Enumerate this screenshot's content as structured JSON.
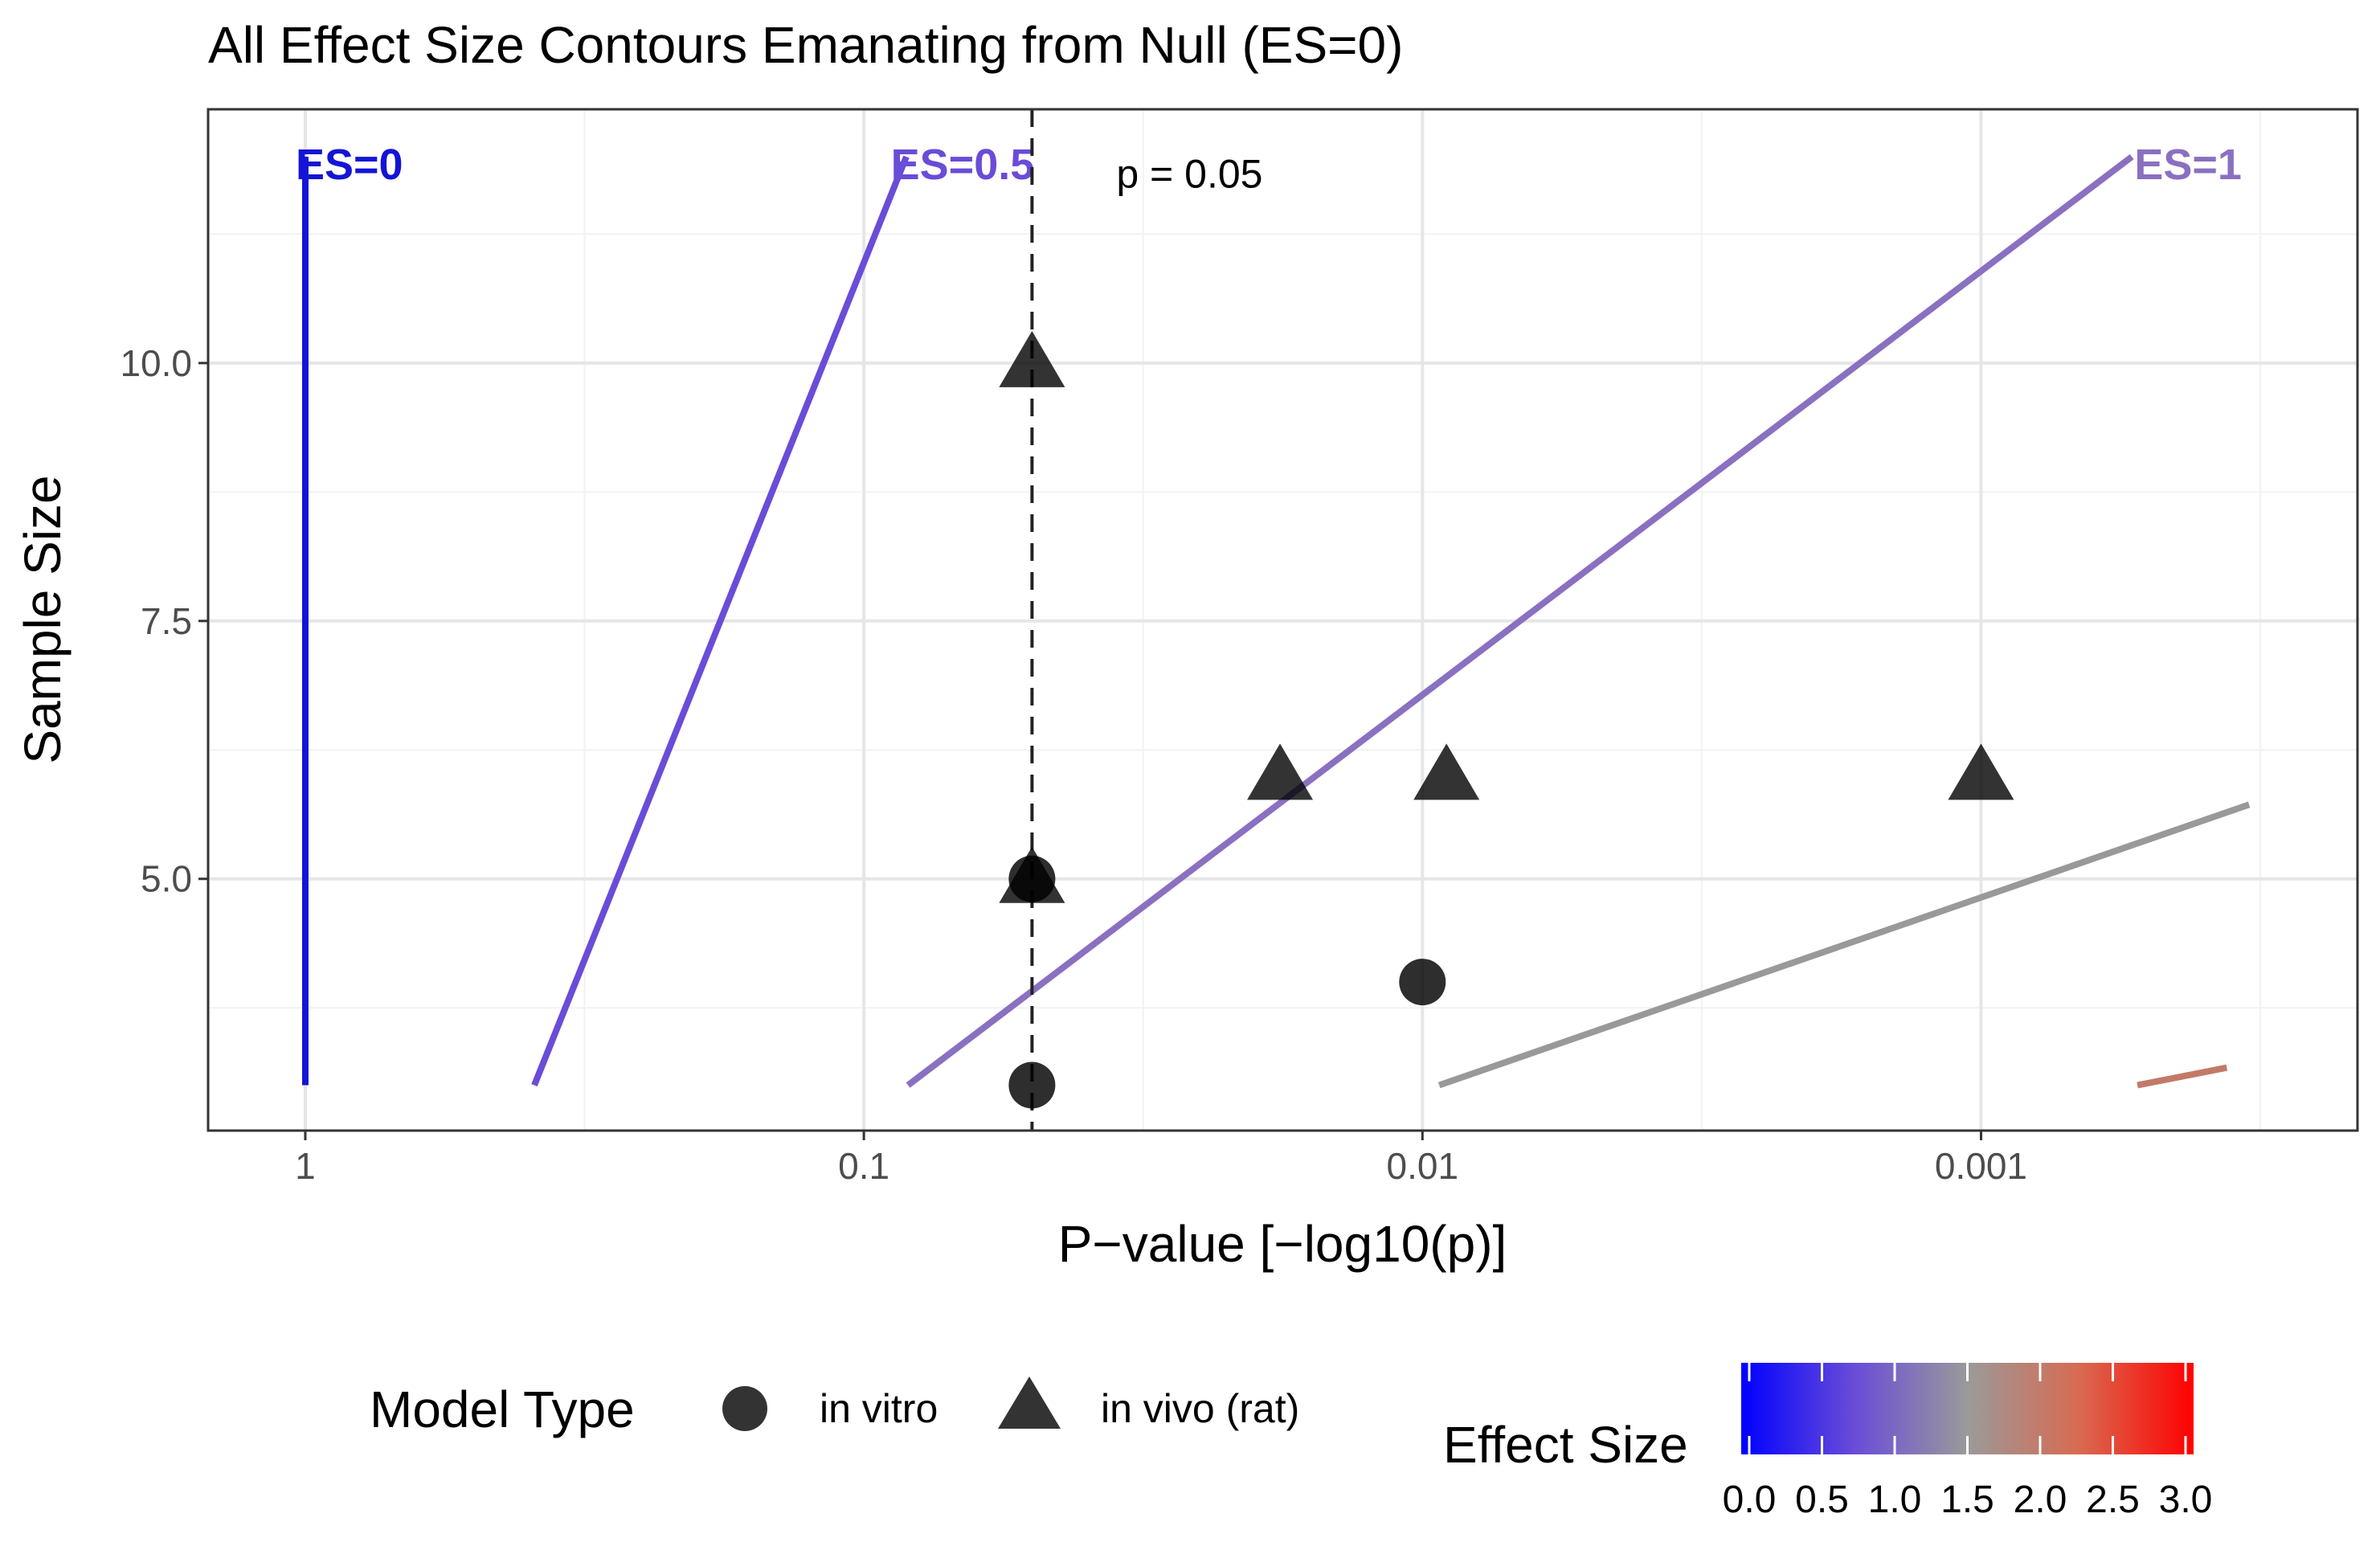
{
  "chart_data": {
    "type": "scatter",
    "title": "All Effect Size Contours Emanating from Null (ES=0)",
    "xlabel": "P−value [−log10(p)]",
    "ylabel": "Sample Size",
    "x_scale": "-log10(p)",
    "xlim": [
      -0.174,
      3.674
    ],
    "ylim": [
      2.56,
      12.46
    ],
    "grid": true,
    "x_ticks": [
      {
        "value": 0,
        "label": "1"
      },
      {
        "value": 1,
        "label": "0.1"
      },
      {
        "value": 2,
        "label": "0.01"
      },
      {
        "value": 3,
        "label": "0.001"
      }
    ],
    "y_ticks": [
      {
        "value": 5,
        "label": "5.0"
      },
      {
        "value": 7.5,
        "label": "7.5"
      },
      {
        "value": 10,
        "label": "10.0"
      }
    ],
    "reference_line": {
      "x": 1.301,
      "label": "p = 0.05",
      "style": "dashed"
    },
    "contours": [
      {
        "label": "ES=0",
        "es": 0,
        "color": "#1414d6",
        "points": [
          [
            0,
            3
          ],
          [
            0,
            12
          ]
        ]
      },
      {
        "label": "ES=0.5",
        "es": 0.5,
        "color": "#6a4cd8",
        "points": [
          [
            0.41,
            3
          ],
          [
            1.076,
            12
          ]
        ]
      },
      {
        "label": "ES=1",
        "es": 1,
        "color": "#8a70c0",
        "points": [
          [
            1.079,
            3
          ],
          [
            3.27,
            12
          ]
        ]
      },
      {
        "label": "",
        "es": 1.5,
        "color": "#999999",
        "points": [
          [
            2.03,
            3
          ],
          [
            3.48,
            5.72
          ]
        ]
      },
      {
        "label": "",
        "es": 2,
        "color": "#c27a68",
        "points": [
          [
            3.28,
            3
          ],
          [
            3.44,
            3.17
          ]
        ]
      }
    ],
    "points": [
      {
        "x": 1.301,
        "y": 5,
        "model": "in vitro"
      },
      {
        "x": 1.301,
        "y": 3,
        "model": "in vitro"
      },
      {
        "x": 2.0,
        "y": 4,
        "model": "in vitro"
      },
      {
        "x": 1.301,
        "y": 10,
        "model": "in vivo (rat)"
      },
      {
        "x": 1.301,
        "y": 5,
        "model": "in vivo (rat)"
      },
      {
        "x": 1.745,
        "y": 6,
        "model": "in vivo (rat)"
      },
      {
        "x": 2.043,
        "y": 6,
        "model": "in vivo (rat)"
      },
      {
        "x": 3.0,
        "y": 6,
        "model": "in vivo (rat)"
      }
    ],
    "legend": {
      "placement": "bottom",
      "shape_title": "Model Type",
      "shape_entries": [
        {
          "label": "in vitro",
          "shape": "circle"
        },
        {
          "label": "in vivo (rat)",
          "shape": "triangle"
        }
      ],
      "color_title": "Effect Size",
      "color_ticks": [
        "0.0",
        "0.5",
        "1.0",
        "1.5",
        "2.0",
        "2.5",
        "3.0"
      ],
      "color_range": [
        0,
        3
      ],
      "color_stops": [
        "#0000ff",
        "#9a9a9a",
        "#ff0000"
      ]
    }
  }
}
